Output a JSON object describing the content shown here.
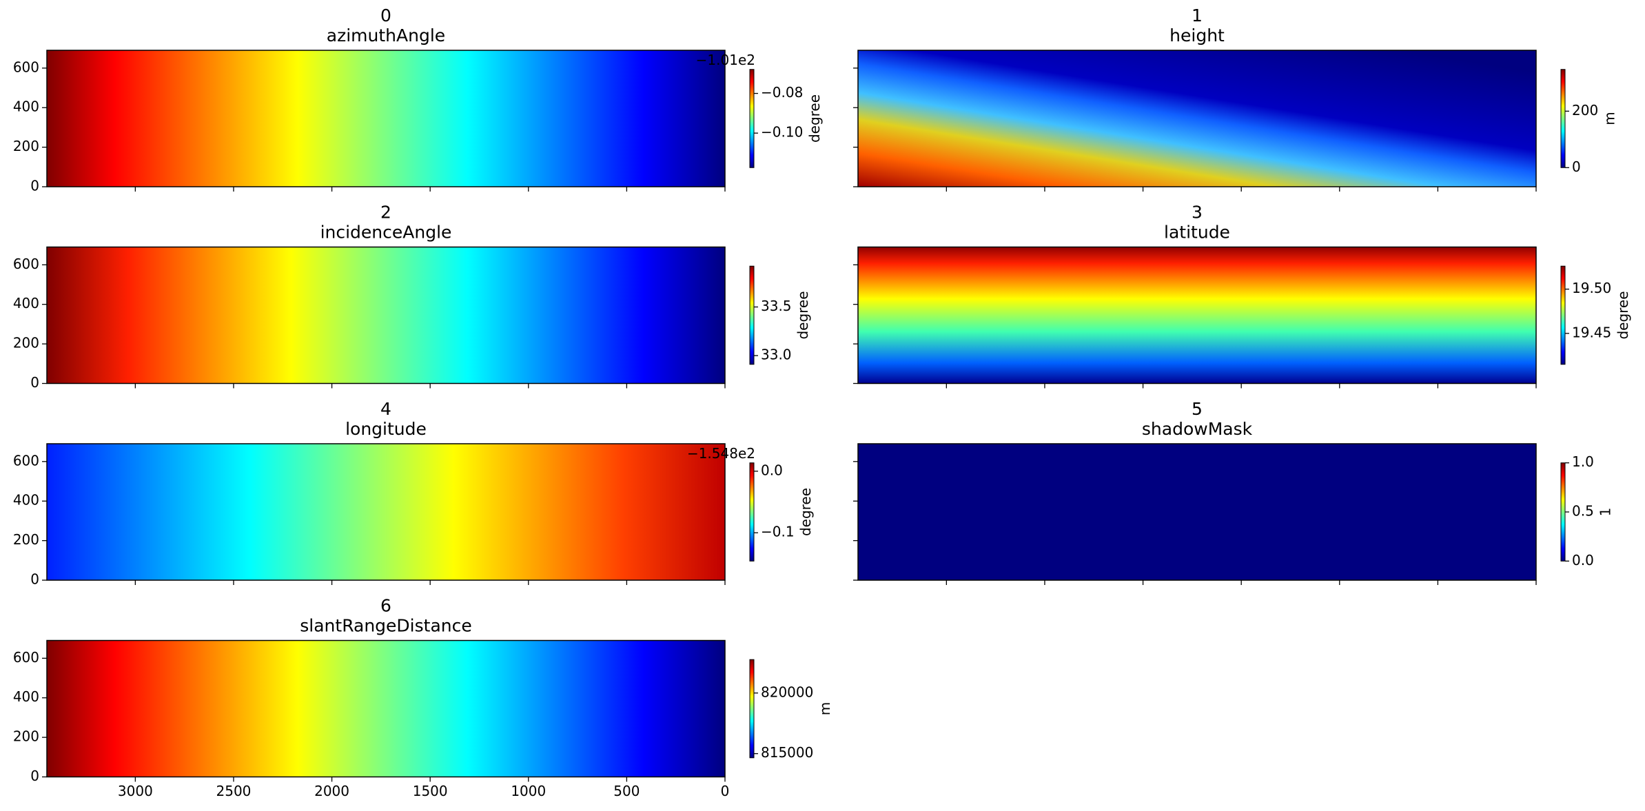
{
  "chart_data": [
    {
      "type": "image",
      "title": "0",
      "subtitle": "azimuthAngle",
      "cmap": "jet",
      "colorbar_label": "degree",
      "offset_text": "−1.01e2",
      "clim": [
        -0.1174,
        -0.0679
      ],
      "cticks": [
        {
          "value": -0.1,
          "label": "−0.10"
        },
        {
          "value": -0.08,
          "label": "−0.08"
        }
      ],
      "xlim": [
        3450,
        0
      ],
      "xticks": [
        3000,
        2500,
        2000,
        1500,
        1000,
        500,
        0
      ],
      "ylim": [
        690,
        0
      ],
      "yticks": [
        0,
        200,
        400,
        600
      ]
    },
    {
      "type": "image",
      "title": "1",
      "subtitle": "height",
      "cmap": "jet",
      "colorbar_label": "m",
      "clim": [
        0,
        348
      ],
      "cticks": [
        0,
        200
      ],
      "xlim": [
        3450,
        0
      ],
      "xticks": [
        3000,
        2500,
        2000,
        1500,
        1000,
        500,
        0
      ],
      "ylim": [
        690,
        0
      ],
      "yticks": [
        0,
        200,
        400,
        600
      ]
    },
    {
      "type": "image",
      "title": "2",
      "subtitle": "incidenceAngle",
      "cmap": "jet",
      "colorbar_label": "degree",
      "clim": [
        32.91,
        33.92
      ],
      "cticks": [
        {
          "value": 33.0,
          "label": "33.0"
        },
        {
          "value": 33.5,
          "label": "33.5"
        }
      ],
      "xlim": [
        3450,
        0
      ],
      "xticks": [
        3000,
        2500,
        2000,
        1500,
        1000,
        500,
        0
      ],
      "ylim": [
        690,
        0
      ],
      "yticks": [
        0,
        200,
        400,
        600
      ]
    },
    {
      "type": "image",
      "title": "3",
      "subtitle": "latitude",
      "cmap": "jet",
      "colorbar_label": "degree",
      "clim": [
        19.415,
        19.526
      ],
      "cticks": [
        {
          "value": 19.45,
          "label": "19.45"
        },
        {
          "value": 19.5,
          "label": "19.50"
        }
      ],
      "xlim": [
        3450,
        0
      ],
      "xticks": [
        3000,
        2500,
        2000,
        1500,
        1000,
        500,
        0
      ],
      "ylim": [
        690,
        0
      ],
      "yticks": [
        0,
        200,
        400,
        600
      ]
    },
    {
      "type": "image",
      "title": "4",
      "subtitle": "longitude",
      "cmap": "jet",
      "colorbar_label": "degree",
      "offset_text": "−1.548e2",
      "clim": [
        -0.146,
        0.0136
      ],
      "cticks": [
        {
          "value": -0.1,
          "label": "−0.1"
        },
        {
          "value": 0.0,
          "label": "0.0"
        }
      ],
      "xlim": [
        3450,
        0
      ],
      "xticks": [
        3000,
        2500,
        2000,
        1500,
        1000,
        500,
        0
      ],
      "ylim": [
        690,
        0
      ],
      "yticks": [
        0,
        200,
        400,
        600
      ]
    },
    {
      "type": "image",
      "title": "5",
      "subtitle": "shadowMask",
      "cmap": "jet",
      "colorbar_label": "1",
      "clim": [
        0,
        1
      ],
      "cticks": [
        {
          "value": 0,
          "label": "0.0"
        },
        {
          "value": 0.5,
          "label": "0.5"
        },
        {
          "value": 1,
          "label": "1.0"
        }
      ],
      "xlim": [
        3450,
        0
      ],
      "xticks": [
        3000,
        2500,
        2000,
        1500,
        1000,
        500,
        0
      ],
      "ylim": [
        690,
        0
      ],
      "yticks": [
        0,
        200,
        400,
        600
      ]
    },
    {
      "type": "image",
      "title": "6",
      "subtitle": "slantRangeDistance",
      "cmap": "jet",
      "colorbar_label": "m",
      "clim": [
        814655,
        822759
      ],
      "cticks": [
        815000,
        820000
      ],
      "xlim": [
        3450,
        0
      ],
      "xticks": [
        3000,
        2500,
        2000,
        1500,
        1000,
        500,
        0
      ],
      "ylim": [
        690,
        0
      ],
      "yticks": [
        0,
        200,
        400,
        600
      ]
    }
  ]
}
